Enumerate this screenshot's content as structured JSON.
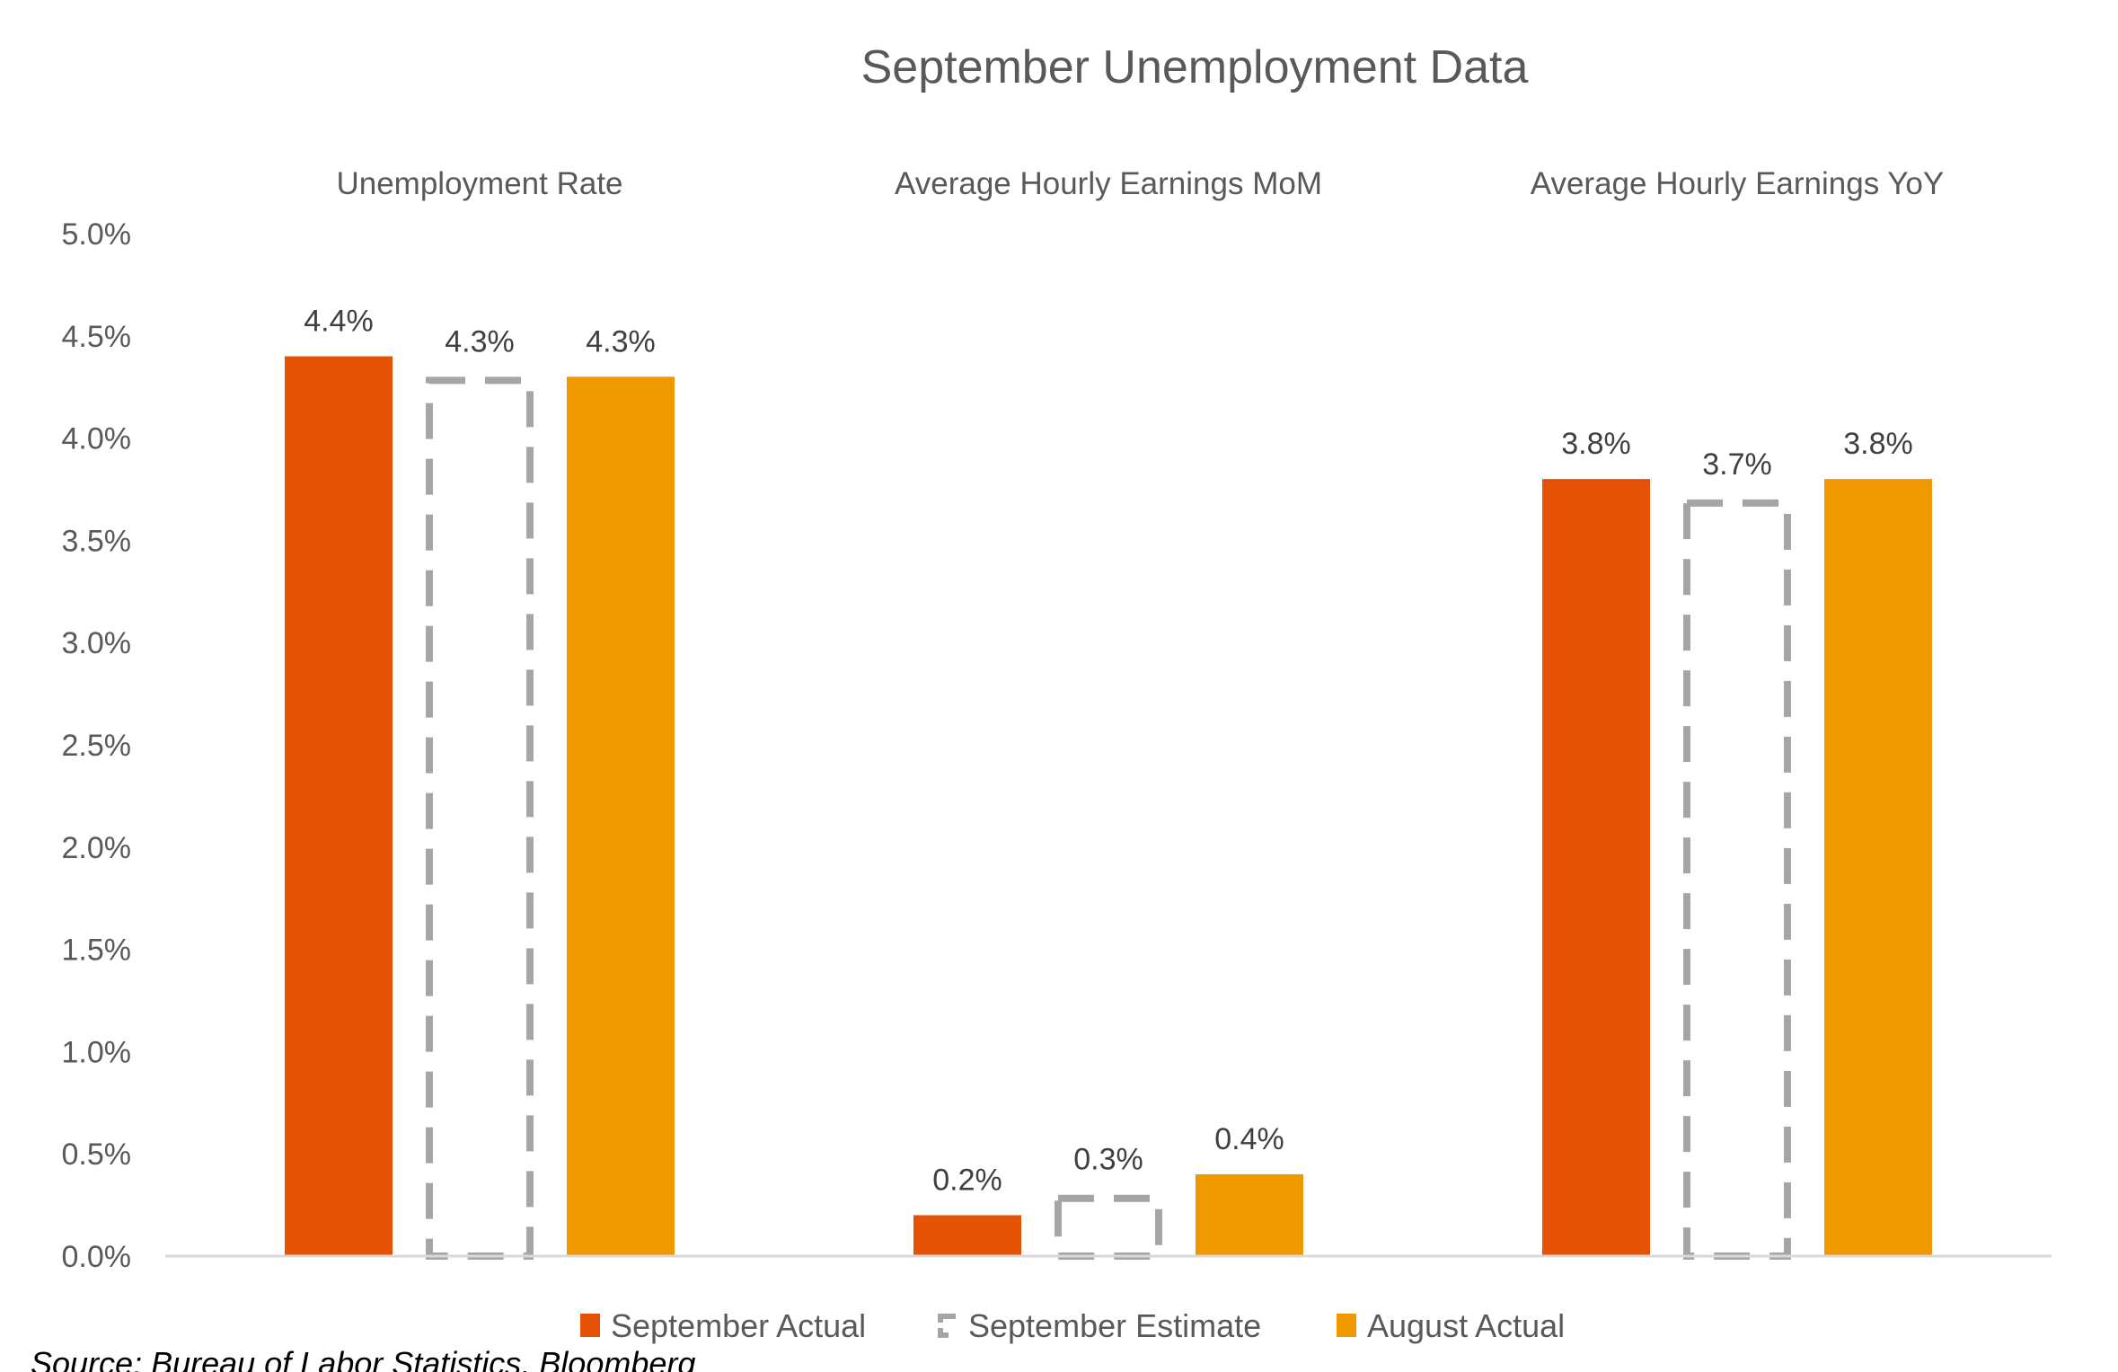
{
  "chart_data": {
    "type": "bar",
    "title": "September Unemployment Data",
    "categories": [
      "Unemployment Rate",
      "Average Hourly Earnings MoM",
      "Average Hourly Earnings YoY"
    ],
    "series": [
      {
        "name": "September Actual",
        "values": [
          4.4,
          0.2,
          3.8
        ],
        "labels": [
          "4.4%",
          "0.2%",
          "3.8%"
        ],
        "color": "#E35205",
        "style": "solid"
      },
      {
        "name": "September Estimate",
        "values": [
          4.3,
          0.3,
          3.7
        ],
        "labels": [
          "4.3%",
          "0.3%",
          "3.7%"
        ],
        "color": "#A5A5A5",
        "style": "dashed-outline"
      },
      {
        "name": "August Actual",
        "values": [
          4.3,
          0.4,
          3.8
        ],
        "labels": [
          "4.3%",
          "0.4%",
          "3.8%"
        ],
        "color": "#F09800",
        "style": "solid"
      }
    ],
    "ylim": [
      0,
      5.0
    ],
    "yticks": [
      0,
      0.5,
      1.0,
      1.5,
      2.0,
      2.5,
      3.0,
      3.5,
      4.0,
      4.5,
      5.0
    ],
    "ytick_labels": [
      "0.0%",
      "0.5%",
      "1.0%",
      "1.5%",
      "2.0%",
      "2.5%",
      "3.0%",
      "3.5%",
      "4.0%",
      "4.5%",
      "5.0%"
    ],
    "xlabel": "",
    "ylabel": "",
    "grid": false,
    "legend_position": "bottom",
    "source": "Source: Bureau of Labor Statistics, Bloomberg"
  }
}
